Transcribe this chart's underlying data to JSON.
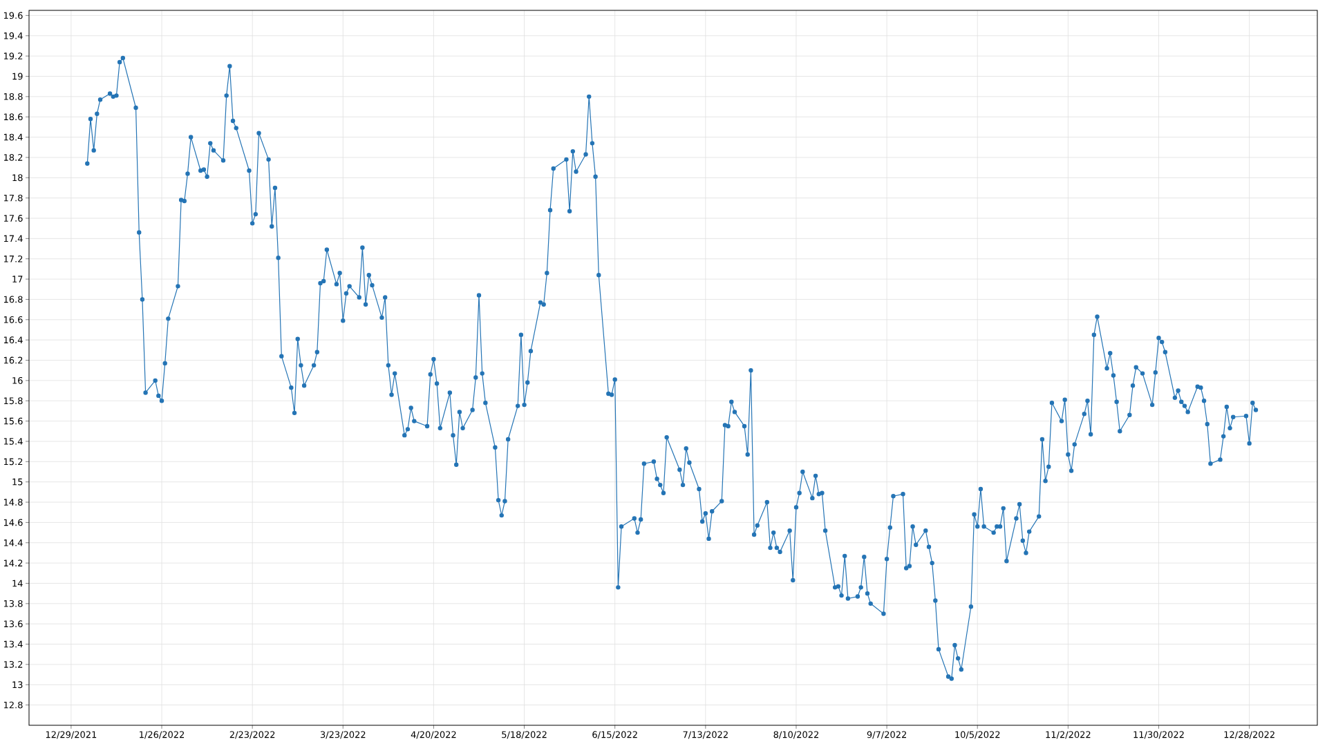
{
  "chart_data": {
    "type": "line",
    "marker": "circle",
    "grid": true,
    "xlim": [
      "2021-12-16",
      "2023-01-18"
    ],
    "ylim": [
      12.6,
      19.65
    ],
    "xticks": [
      {
        "value": "2021-12-29",
        "label": "12/29/2021"
      },
      {
        "value": "2022-01-26",
        "label": "1/26/2022"
      },
      {
        "value": "2022-02-23",
        "label": "2/23/2022"
      },
      {
        "value": "2022-03-23",
        "label": "3/23/2022"
      },
      {
        "value": "2022-04-20",
        "label": "4/20/2022"
      },
      {
        "value": "2022-05-18",
        "label": "5/18/2022"
      },
      {
        "value": "2022-06-15",
        "label": "6/15/2022"
      },
      {
        "value": "2022-07-13",
        "label": "7/13/2022"
      },
      {
        "value": "2022-08-10",
        "label": "8/10/2022"
      },
      {
        "value": "2022-09-07",
        "label": "9/7/2022"
      },
      {
        "value": "2022-10-05",
        "label": "10/5/2022"
      },
      {
        "value": "2022-11-02",
        "label": "11/2/2022"
      },
      {
        "value": "2022-11-30",
        "label": "11/30/2022"
      },
      {
        "value": "2022-12-28",
        "label": "12/28/2022"
      }
    ],
    "yticks": [
      12.8,
      13,
      13.2,
      13.4,
      13.6,
      13.8,
      14,
      14.2,
      14.4,
      14.6,
      14.8,
      15,
      15.2,
      15.4,
      15.6,
      15.8,
      16,
      16.2,
      16.4,
      16.6,
      16.8,
      17,
      17.2,
      17.4,
      17.6,
      17.8,
      18,
      18.2,
      18.4,
      18.6,
      18.8,
      19,
      19.2,
      19.4,
      19.6
    ],
    "series": [
      {
        "color": "#2474b5",
        "x": [
          "2022-01-03",
          "2022-01-04",
          "2022-01-05",
          "2022-01-06",
          "2022-01-07",
          "2022-01-10",
          "2022-01-11",
          "2022-01-12",
          "2022-01-13",
          "2022-01-14",
          "2022-01-18",
          "2022-01-19",
          "2022-01-20",
          "2022-01-21",
          "2022-01-24",
          "2022-01-25",
          "2022-01-26",
          "2022-01-27",
          "2022-01-28",
          "2022-01-31",
          "2022-02-01",
          "2022-02-02",
          "2022-02-03",
          "2022-02-04",
          "2022-02-07",
          "2022-02-08",
          "2022-02-09",
          "2022-02-10",
          "2022-02-11",
          "2022-02-14",
          "2022-02-15",
          "2022-02-16",
          "2022-02-17",
          "2022-02-18",
          "2022-02-22",
          "2022-02-23",
          "2022-02-24",
          "2022-02-25",
          "2022-02-28",
          "2022-03-01",
          "2022-03-02",
          "2022-03-03",
          "2022-03-04",
          "2022-03-07",
          "2022-03-08",
          "2022-03-09",
          "2022-03-10",
          "2022-03-11",
          "2022-03-14",
          "2022-03-15",
          "2022-03-16",
          "2022-03-17",
          "2022-03-18",
          "2022-03-21",
          "2022-03-22",
          "2022-03-23",
          "2022-03-24",
          "2022-03-25",
          "2022-03-28",
          "2022-03-29",
          "2022-03-30",
          "2022-03-31",
          "2022-04-01",
          "2022-04-04",
          "2022-04-05",
          "2022-04-06",
          "2022-04-07",
          "2022-04-08",
          "2022-04-11",
          "2022-04-12",
          "2022-04-13",
          "2022-04-14",
          "2022-04-18",
          "2022-04-19",
          "2022-04-20",
          "2022-04-21",
          "2022-04-22",
          "2022-04-25",
          "2022-04-26",
          "2022-04-27",
          "2022-04-28",
          "2022-04-29",
          "2022-05-02",
          "2022-05-03",
          "2022-05-04",
          "2022-05-05",
          "2022-05-06",
          "2022-05-09",
          "2022-05-10",
          "2022-05-11",
          "2022-05-12",
          "2022-05-13",
          "2022-05-16",
          "2022-05-17",
          "2022-05-18",
          "2022-05-19",
          "2022-05-20",
          "2022-05-23",
          "2022-05-24",
          "2022-05-25",
          "2022-05-26",
          "2022-05-27",
          "2022-05-31",
          "2022-06-01",
          "2022-06-02",
          "2022-06-03",
          "2022-06-06",
          "2022-06-07",
          "2022-06-08",
          "2022-06-09",
          "2022-06-10",
          "2022-06-13",
          "2022-06-14",
          "2022-06-15",
          "2022-06-16",
          "2022-06-17",
          "2022-06-21",
          "2022-06-22",
          "2022-06-23",
          "2022-06-24",
          "2022-06-27",
          "2022-06-28",
          "2022-06-29",
          "2022-06-30",
          "2022-07-01",
          "2022-07-05",
          "2022-07-06",
          "2022-07-07",
          "2022-07-08",
          "2022-07-11",
          "2022-07-12",
          "2022-07-13",
          "2022-07-14",
          "2022-07-15",
          "2022-07-18",
          "2022-07-19",
          "2022-07-20",
          "2022-07-21",
          "2022-07-22",
          "2022-07-25",
          "2022-07-26",
          "2022-07-27",
          "2022-07-28",
          "2022-07-29",
          "2022-08-01",
          "2022-08-02",
          "2022-08-03",
          "2022-08-04",
          "2022-08-05",
          "2022-08-08",
          "2022-08-09",
          "2022-08-10",
          "2022-08-11",
          "2022-08-12",
          "2022-08-15",
          "2022-08-16",
          "2022-08-17",
          "2022-08-18",
          "2022-08-19",
          "2022-08-22",
          "2022-08-23",
          "2022-08-24",
          "2022-08-25",
          "2022-08-26",
          "2022-08-29",
          "2022-08-30",
          "2022-08-31",
          "2022-09-01",
          "2022-09-02",
          "2022-09-06",
          "2022-09-07",
          "2022-09-08",
          "2022-09-09",
          "2022-09-12",
          "2022-09-13",
          "2022-09-14",
          "2022-09-15",
          "2022-09-16",
          "2022-09-19",
          "2022-09-20",
          "2022-09-21",
          "2022-09-22",
          "2022-09-23",
          "2022-09-26",
          "2022-09-27",
          "2022-09-28",
          "2022-09-29",
          "2022-09-30",
          "2022-10-03",
          "2022-10-04",
          "2022-10-05",
          "2022-10-06",
          "2022-10-07",
          "2022-10-10",
          "2022-10-11",
          "2022-10-12",
          "2022-10-13",
          "2022-10-14",
          "2022-10-17",
          "2022-10-18",
          "2022-10-19",
          "2022-10-20",
          "2022-10-21",
          "2022-10-24",
          "2022-10-25",
          "2022-10-26",
          "2022-10-27",
          "2022-10-28",
          "2022-10-31",
          "2022-11-01",
          "2022-11-02",
          "2022-11-03",
          "2022-11-04",
          "2022-11-07",
          "2022-11-08",
          "2022-11-09",
          "2022-11-10",
          "2022-11-11",
          "2022-11-14",
          "2022-11-15",
          "2022-11-16",
          "2022-11-17",
          "2022-11-18",
          "2022-11-21",
          "2022-11-22",
          "2022-11-23",
          "2022-11-25",
          "2022-11-28",
          "2022-11-29",
          "2022-11-30",
          "2022-12-01",
          "2022-12-02",
          "2022-12-05",
          "2022-12-06",
          "2022-12-07",
          "2022-12-08",
          "2022-12-09",
          "2022-12-12",
          "2022-12-13",
          "2022-12-14",
          "2022-12-15",
          "2022-12-16",
          "2022-12-19",
          "2022-12-20",
          "2022-12-21",
          "2022-12-22",
          "2022-12-23",
          "2022-12-27",
          "2022-12-28",
          "2022-12-29",
          "2022-12-30"
        ],
        "values": [
          18.14,
          18.58,
          18.27,
          18.63,
          18.77,
          18.83,
          18.8,
          18.81,
          19.14,
          19.18,
          18.69,
          17.46,
          16.8,
          15.88,
          16.0,
          15.85,
          15.8,
          16.17,
          16.61,
          16.93,
          17.78,
          17.77,
          18.04,
          18.4,
          18.07,
          18.08,
          18.01,
          18.34,
          18.27,
          18.17,
          18.81,
          19.1,
          18.56,
          18.49,
          18.07,
          17.55,
          17.64,
          18.44,
          18.18,
          17.52,
          17.9,
          17.21,
          16.24,
          15.93,
          15.68,
          16.41,
          16.15,
          15.95,
          16.15,
          16.28,
          16.96,
          16.98,
          17.29,
          16.95,
          17.06,
          16.59,
          16.86,
          16.93,
          16.82,
          17.31,
          16.75,
          17.04,
          16.94,
          16.62,
          16.82,
          16.15,
          15.86,
          16.07,
          15.46,
          15.52,
          15.73,
          15.6,
          15.55,
          16.06,
          16.21,
          15.97,
          15.53,
          15.88,
          15.46,
          15.17,
          15.69,
          15.53,
          15.71,
          16.03,
          16.84,
          16.07,
          15.78,
          15.34,
          14.82,
          14.67,
          14.81,
          15.42,
          15.75,
          16.45,
          15.76,
          15.98,
          16.29,
          16.77,
          16.75,
          17.06,
          17.68,
          18.09,
          18.18,
          17.67,
          18.26,
          18.06,
          18.23,
          18.8,
          18.34,
          18.01,
          17.04,
          15.87,
          15.86,
          16.01,
          13.96,
          14.56,
          14.64,
          14.5,
          14.63,
          15.18,
          15.2,
          15.03,
          14.97,
          14.89,
          15.44,
          15.12,
          14.97,
          15.33,
          15.19,
          14.93,
          14.61,
          14.69,
          14.44,
          14.71,
          14.81,
          15.56,
          15.55,
          15.79,
          15.69,
          15.55,
          15.27,
          16.1,
          14.48,
          14.57,
          14.8,
          14.35,
          14.5,
          14.35,
          14.31,
          14.52,
          14.03,
          14.75,
          14.89,
          15.1,
          14.84,
          15.06,
          14.88,
          14.89,
          14.52,
          13.96,
          13.97,
          13.88,
          14.27,
          13.85,
          13.87,
          13.96,
          14.26,
          13.9,
          13.8,
          13.7,
          14.24,
          14.55,
          14.86,
          14.88,
          14.15,
          14.17,
          14.56,
          14.38,
          14.52,
          14.36,
          14.2,
          13.83,
          13.35,
          13.08,
          13.06,
          13.39,
          13.26,
          13.15,
          13.77,
          14.68,
          14.56,
          14.93,
          14.56,
          14.5,
          14.56,
          14.56,
          14.74,
          14.22,
          14.64,
          14.78,
          14.42,
          14.3,
          14.51,
          14.66,
          15.42,
          15.01,
          15.15,
          15.78,
          15.6,
          15.81,
          15.27,
          15.11,
          15.37,
          15.67,
          15.8,
          15.47,
          16.45,
          16.63,
          16.12,
          16.27,
          16.05,
          15.79,
          15.5,
          15.66,
          15.95,
          16.13,
          16.07,
          15.76,
          16.08,
          16.42,
          16.38,
          16.28,
          15.83,
          15.9,
          15.79,
          15.75,
          15.69,
          15.94,
          15.93,
          15.8,
          15.57,
          15.18,
          15.22,
          15.45,
          15.74,
          15.53,
          15.64,
          15.65,
          15.38,
          15.78,
          15.71
        ]
      }
    ]
  }
}
